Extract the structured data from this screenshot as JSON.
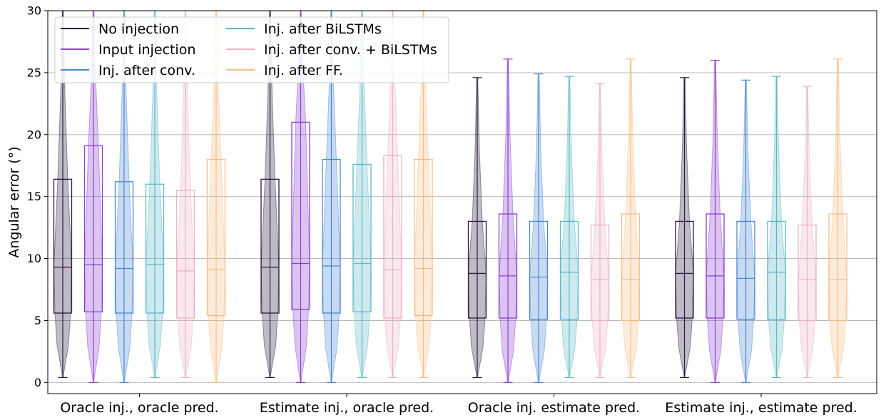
{
  "chart_data": {
    "type": "box",
    "title": "",
    "xlabel": "",
    "ylabel": "Angular error (°)",
    "ylim": [
      -0.9,
      30
    ],
    "yticks": [
      0,
      5,
      10,
      15,
      20,
      25,
      30
    ],
    "grid": "horizontal",
    "legend_position": "top-left",
    "categories": [
      "Oracle inj., oracle pred.",
      "Estimate inj., oracle pred.",
      "Oracle inj. estimate pred.",
      "Estimate inj., estimate pred."
    ],
    "series": [
      {
        "name": "No injection",
        "color": "#2a1a3e",
        "stats": [
          {
            "lo": 0.4,
            "q1": 5.6,
            "med": 9.3,
            "q3": 16.4,
            "hi": 30
          },
          {
            "lo": 0.4,
            "q1": 5.6,
            "med": 9.3,
            "q3": 16.4,
            "hi": 30
          },
          {
            "lo": 0.4,
            "q1": 5.2,
            "med": 8.8,
            "q3": 13.0,
            "hi": 24.6
          },
          {
            "lo": 0.4,
            "q1": 5.2,
            "med": 8.8,
            "q3": 13.0,
            "hi": 24.6
          }
        ]
      },
      {
        "name": "Input injection",
        "color": "#8a3fd1",
        "stats": [
          {
            "lo": 0.0,
            "q1": 5.7,
            "med": 9.5,
            "q3": 19.1,
            "hi": 30
          },
          {
            "lo": 0.0,
            "q1": 5.9,
            "med": 9.6,
            "q3": 21.0,
            "hi": 30
          },
          {
            "lo": 0.0,
            "q1": 5.2,
            "med": 8.6,
            "q3": 13.6,
            "hi": 26.1
          },
          {
            "lo": 0.0,
            "q1": 5.2,
            "med": 8.6,
            "q3": 13.6,
            "hi": 26.0
          }
        ]
      },
      {
        "name": "Inj. after conv.",
        "color": "#4a87d4",
        "stats": [
          {
            "lo": 0.0,
            "q1": 5.6,
            "med": 9.2,
            "q3": 16.2,
            "hi": 30
          },
          {
            "lo": 0.0,
            "q1": 5.6,
            "med": 9.4,
            "q3": 18.0,
            "hi": 30
          },
          {
            "lo": 0.0,
            "q1": 5.1,
            "med": 8.5,
            "q3": 13.0,
            "hi": 24.9
          },
          {
            "lo": 0.0,
            "q1": 5.1,
            "med": 8.4,
            "q3": 13.0,
            "hi": 24.4
          }
        ]
      },
      {
        "name": "Inj. after BiLSTMs",
        "color": "#5cb8c8",
        "stats": [
          {
            "lo": 0.4,
            "q1": 5.6,
            "med": 9.5,
            "q3": 16.0,
            "hi": 30
          },
          {
            "lo": 0.4,
            "q1": 5.7,
            "med": 9.6,
            "q3": 17.6,
            "hi": 30
          },
          {
            "lo": 0.4,
            "q1": 5.1,
            "med": 8.9,
            "q3": 13.0,
            "hi": 24.7
          },
          {
            "lo": 0.4,
            "q1": 5.1,
            "med": 8.9,
            "q3": 13.0,
            "hi": 24.7
          }
        ]
      },
      {
        "name": "Inj. after conv. + BiLSTMs",
        "color": "#eab2c8",
        "stats": [
          {
            "lo": 0.4,
            "q1": 5.2,
            "med": 9.0,
            "q3": 15.5,
            "hi": 30
          },
          {
            "lo": 0.4,
            "q1": 5.2,
            "med": 9.1,
            "q3": 18.3,
            "hi": 30
          },
          {
            "lo": 0.4,
            "q1": 5.0,
            "med": 8.3,
            "q3": 12.7,
            "hi": 24.1
          },
          {
            "lo": 0.4,
            "q1": 5.0,
            "med": 8.3,
            "q3": 12.7,
            "hi": 23.9
          }
        ]
      },
      {
        "name": "Inj. after FF.",
        "color": "#f8bd86",
        "stats": [
          {
            "lo": 0.0,
            "q1": 5.4,
            "med": 9.1,
            "q3": 18.0,
            "hi": 30
          },
          {
            "lo": 0.4,
            "q1": 5.4,
            "med": 9.2,
            "q3": 18.0,
            "hi": 30
          },
          {
            "lo": 0.4,
            "q1": 5.0,
            "med": 8.3,
            "q3": 13.6,
            "hi": 26.1
          },
          {
            "lo": 0.4,
            "q1": 5.0,
            "med": 8.3,
            "q3": 13.6,
            "hi": 26.1
          }
        ]
      }
    ]
  }
}
